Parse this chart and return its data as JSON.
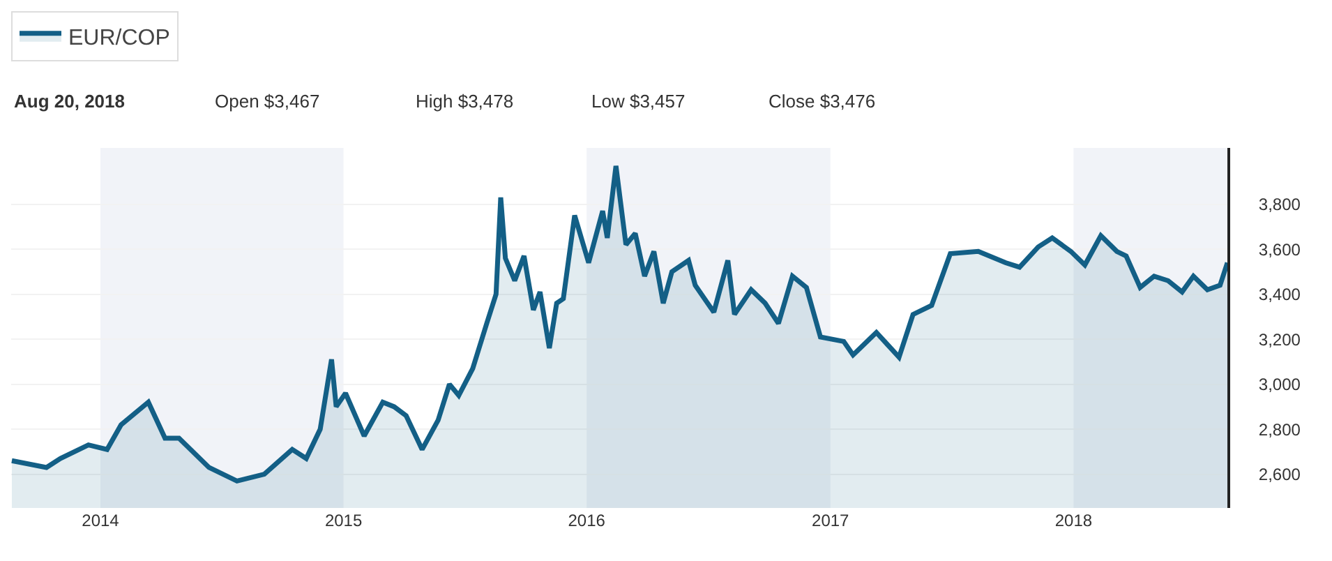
{
  "chart_data": {
    "type": "area",
    "annotations": [
      "Aug 20, 2018",
      "Open $3,467",
      "High $3,478",
      "Low $3,457",
      "Close $3,476"
    ],
    "x": [
      "2013-08-21",
      "2013-10-12",
      "2013-11-02",
      "2013-12-14",
      "2014-01-11",
      "2014-02-01",
      "2014-03-14",
      "2014-04-08",
      "2014-04-29",
      "2014-06-13",
      "2014-07-25",
      "2014-09-04",
      "2014-10-16",
      "2014-11-06",
      "2014-11-27",
      "2014-12-14",
      "2014-12-21",
      "2015-01-04",
      "2015-02-01",
      "2015-03-01",
      "2015-03-18",
      "2015-04-05",
      "2015-04-29",
      "2015-05-23",
      "2015-06-09",
      "2015-06-23",
      "2015-07-14",
      "2015-08-04",
      "2015-08-18",
      "2015-08-25",
      "2015-09-01",
      "2015-09-15",
      "2015-09-29",
      "2015-10-13",
      "2015-10-23",
      "2015-11-06",
      "2015-11-17",
      "2015-11-27",
      "2015-12-14",
      "2016-01-04",
      "2016-01-25",
      "2016-02-01",
      "2016-02-14",
      "2016-02-29",
      "2016-03-14",
      "2016-03-28",
      "2016-04-11",
      "2016-04-25",
      "2016-05-08",
      "2016-06-02",
      "2016-06-12",
      "2016-07-10",
      "2016-07-31",
      "2016-08-10",
      "2016-09-04",
      "2016-09-25",
      "2016-10-15",
      "2016-11-05",
      "2016-11-26",
      "2016-12-17",
      "2017-01-21",
      "2017-02-04",
      "2017-03-11",
      "2017-04-14",
      "2017-05-05",
      "2017-06-02",
      "2017-06-30",
      "2017-08-11",
      "2017-09-21",
      "2017-10-12",
      "2017-11-09",
      "2017-11-30",
      "2017-12-28",
      "2018-01-18",
      "2018-02-11",
      "2018-03-07",
      "2018-03-21",
      "2018-04-11",
      "2018-05-02",
      "2018-05-23",
      "2018-06-13",
      "2018-06-30",
      "2018-07-21",
      "2018-08-09",
      "2018-08-20"
    ],
    "series": [
      {
        "name": "EUR/COP",
        "color": "#135f86",
        "values": [
          2660,
          2630,
          2670,
          2730,
          2710,
          2820,
          2920,
          2760,
          2760,
          2630,
          2570,
          2600,
          2710,
          2670,
          2800,
          3110,
          2900,
          2960,
          2770,
          2920,
          2900,
          2860,
          2710,
          2840,
          3000,
          2950,
          3070,
          3270,
          3400,
          3830,
          3560,
          3460,
          3570,
          3330,
          3410,
          3160,
          3360,
          3380,
          3750,
          3540,
          3770,
          3650,
          3970,
          3620,
          3670,
          3480,
          3590,
          3360,
          3500,
          3550,
          3440,
          3320,
          3550,
          3310,
          3420,
          3360,
          3270,
          3480,
          3430,
          3210,
          3190,
          3130,
          3230,
          3120,
          3310,
          3350,
          3580,
          3590,
          3540,
          3520,
          3610,
          3650,
          3590,
          3530,
          3660,
          3590,
          3570,
          3430,
          3480,
          3460,
          3410,
          3480,
          3420,
          3440,
          3540
        ]
      }
    ],
    "xlim": [
      "2013-08-20",
      "2018-08-20"
    ],
    "xticks": [
      {
        "value": "2014-01-01",
        "label": "2014"
      },
      {
        "value": "2015-01-01",
        "label": "2015"
      },
      {
        "value": "2016-01-01",
        "label": "2016"
      },
      {
        "value": "2017-01-01",
        "label": "2017"
      },
      {
        "value": "2018-01-01",
        "label": "2018"
      }
    ],
    "ylim": [
      2450,
      4050
    ],
    "yticks": [
      {
        "value": 2600,
        "label": "2,600"
      },
      {
        "value": 2800,
        "label": "2,800"
      },
      {
        "value": 3000,
        "label": "3,000"
      },
      {
        "value": 3200,
        "label": "3,200"
      },
      {
        "value": 3400,
        "label": "3,400"
      },
      {
        "value": 3600,
        "label": "3,600"
      },
      {
        "value": 3800,
        "label": "3,800"
      }
    ],
    "bands": [
      {
        "axis": "x",
        "from": "2014-01-01",
        "to": "2015-01-01",
        "color": "#f1f3f8"
      },
      {
        "axis": "x",
        "from": "2016-01-01",
        "to": "2017-01-01",
        "color": "#f1f3f8"
      },
      {
        "axis": "x",
        "from": "2018-01-01",
        "to": "2018-08-20",
        "color": "#f1f3f8"
      }
    ],
    "grid": "y",
    "legend": "top left",
    "marker": "none",
    "line_style": "solid"
  }
}
